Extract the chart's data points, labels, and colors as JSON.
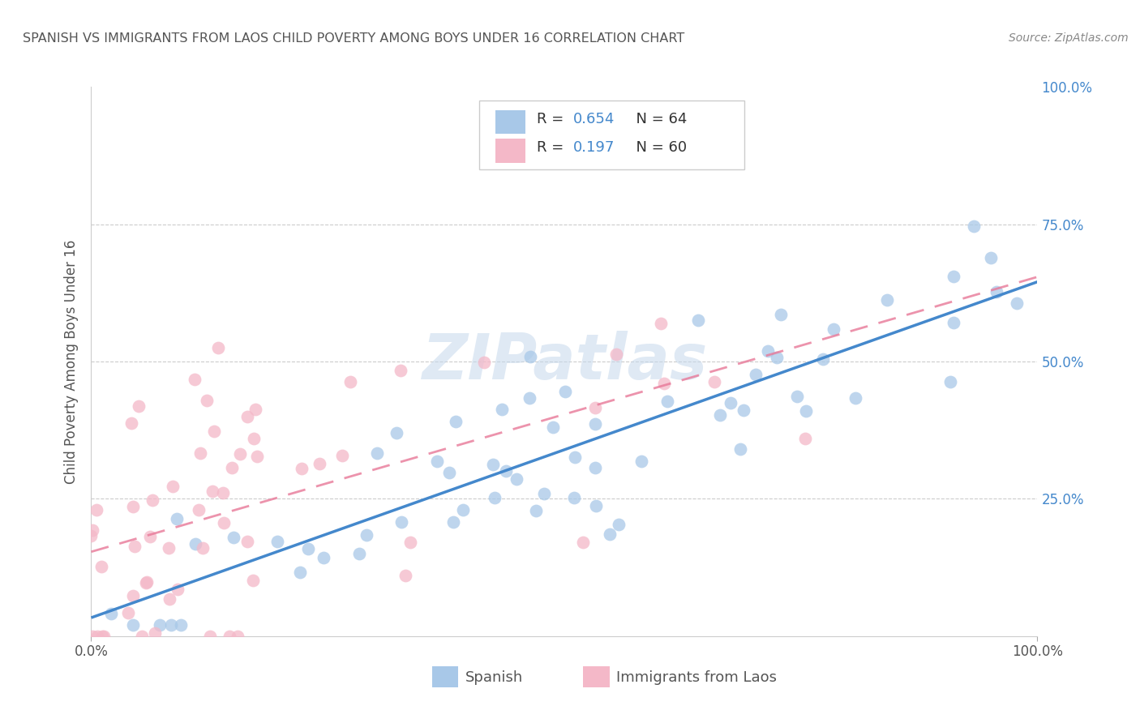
{
  "title": "SPANISH VS IMMIGRANTS FROM LAOS CHILD POVERTY AMONG BOYS UNDER 16 CORRELATION CHART",
  "source": "Source: ZipAtlas.com",
  "ylabel": "Child Poverty Among Boys Under 16",
  "r_spanish": 0.654,
  "n_spanish": 64,
  "r_laos": 0.197,
  "n_laos": 60,
  "spanish_color": "#a8c8e8",
  "laos_color": "#f4b8c8",
  "spanish_line_color": "#4488cc",
  "laos_line_color": "#e87898",
  "watermark": "ZIPatlas",
  "title_color": "#555555",
  "label_color": "#4488cc",
  "legend_r_color": "#4488cc",
  "legend_n_color": "#333333"
}
